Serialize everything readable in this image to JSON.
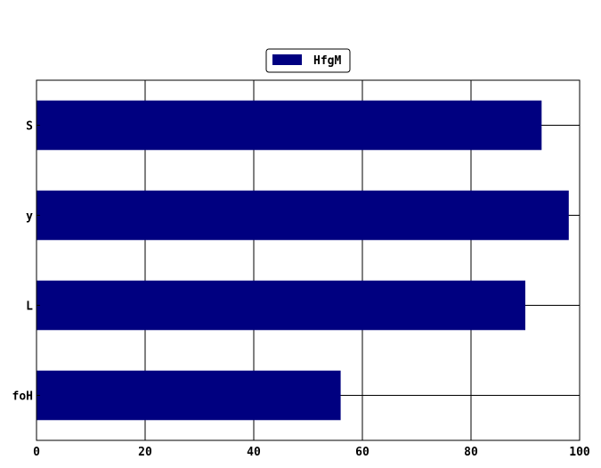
{
  "chart_data": {
    "type": "bar",
    "orientation": "horizontal",
    "categories": [
      "S",
      "y",
      "L",
      "foH"
    ],
    "series": [
      {
        "name": "HfgM",
        "values": [
          93,
          98,
          90,
          56
        ]
      }
    ],
    "xlim": [
      0,
      100
    ],
    "xticks": [
      "0",
      "20",
      "40",
      "60",
      "80",
      "100"
    ],
    "grid": true,
    "legend_position": "top-center",
    "colors": {
      "bar": "#000080",
      "grid": "#000000"
    }
  }
}
